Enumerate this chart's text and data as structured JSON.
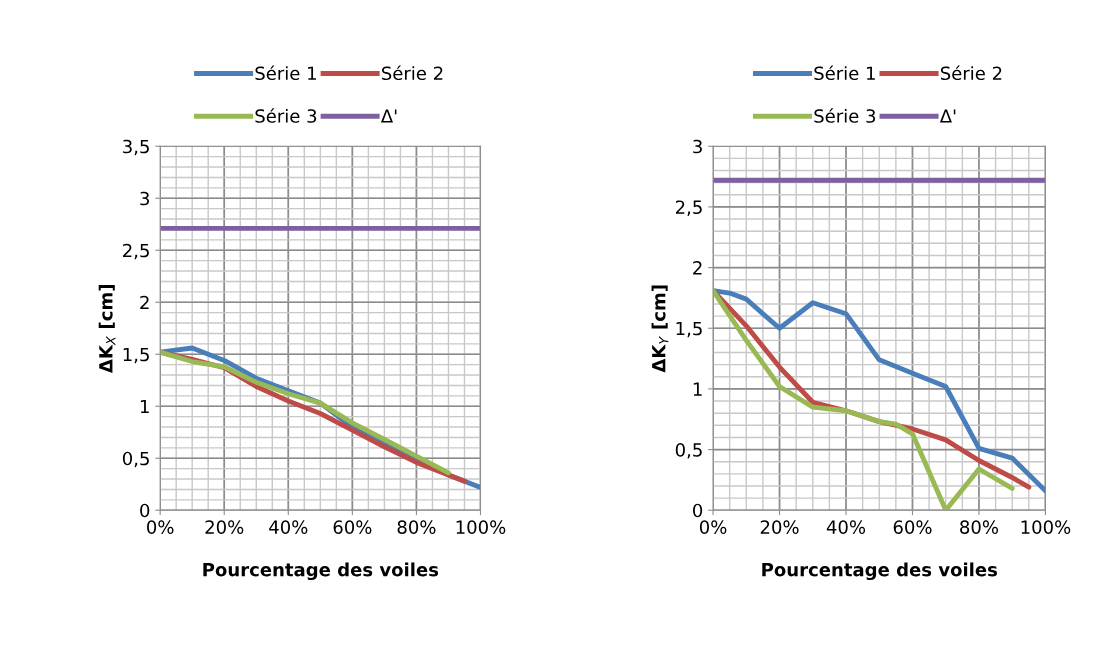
{
  "chart_data": [
    {
      "type": "line",
      "xlabel": "Pourcentage des voiles",
      "ylabel": "ΔK$_{X}$ [cm]",
      "legend": "top",
      "grid": true,
      "xlim": [
        0,
        1
      ],
      "xticks": [
        {
          "value": 0,
          "label": "0%"
        },
        {
          "value": 0.2,
          "label": "20%"
        },
        {
          "value": 0.4,
          "label": "40%"
        },
        {
          "value": 0.6,
          "label": "60%"
        },
        {
          "value": 0.8,
          "label": "80%"
        },
        {
          "value": 1,
          "label": "100%"
        }
      ],
      "ylim": [
        0,
        3.5
      ],
      "yticks": [
        0,
        {
          "value": 0.5,
          "label": "0,5"
        },
        1,
        {
          "value": 1.5,
          "label": "1,5"
        },
        2,
        {
          "value": 2.5,
          "label": "2,5"
        },
        3,
        {
          "value": 3.5,
          "label": "3,5"
        }
      ],
      "series": [
        {
          "name": "Série 1",
          "color": "#4a7ebb",
          "x": [
            0,
            0.1,
            0.2,
            0.3,
            0.4,
            0.5,
            0.6,
            0.7,
            0.8,
            0.9,
            1.0
          ],
          "values": [
            1.52,
            1.56,
            1.44,
            1.27,
            1.15,
            1.03,
            0.8,
            0.64,
            0.5,
            0.34,
            0.22
          ]
        },
        {
          "name": "Série 2",
          "color": "#be4b48",
          "x": [
            0,
            0.1,
            0.2,
            0.3,
            0.4,
            0.5,
            0.6,
            0.7,
            0.8,
            0.9,
            0.95
          ],
          "values": [
            1.52,
            1.45,
            1.37,
            1.19,
            1.05,
            0.93,
            0.77,
            0.61,
            0.46,
            0.34,
            0.28
          ]
        },
        {
          "name": "Série 3",
          "color": "#98b954",
          "x": [
            0,
            0.1,
            0.2,
            0.3,
            0.4,
            0.5,
            0.6,
            0.7,
            0.8,
            0.9
          ],
          "values": [
            1.52,
            1.43,
            1.38,
            1.23,
            1.12,
            1.03,
            0.84,
            0.68,
            0.52,
            0.36
          ]
        },
        {
          "name": "Δ'",
          "color": "#7d60a0",
          "x": [
            0,
            1
          ],
          "values": [
            2.71,
            2.71
          ]
        }
      ]
    },
    {
      "type": "line",
      "xlabel": "Pourcentage des voiles",
      "ylabel": "ΔK$_{Y}$ [cm]",
      "legend": "top",
      "grid": true,
      "xlim": [
        0,
        1
      ],
      "xticks": [
        {
          "value": 0,
          "label": "0%"
        },
        {
          "value": 0.2,
          "label": "20%"
        },
        {
          "value": 0.4,
          "label": "40%"
        },
        {
          "value": 0.6,
          "label": "60%"
        },
        {
          "value": 0.8,
          "label": "80%"
        },
        {
          "value": 1,
          "label": "100%"
        }
      ],
      "ylim": [
        0,
        3
      ],
      "yticks": [
        0,
        {
          "value": 0.5,
          "label": "0,5"
        },
        1,
        {
          "value": 1.5,
          "label": "1,5"
        },
        2,
        {
          "value": 2.5,
          "label": "2,5"
        },
        3
      ],
      "series": [
        {
          "name": "Série 1",
          "color": "#4a7ebb",
          "x": [
            0,
            0.05,
            0.1,
            0.2,
            0.3,
            0.4,
            0.5,
            0.6,
            0.7,
            0.8,
            0.9,
            1.0
          ],
          "values": [
            1.81,
            1.79,
            1.74,
            1.5,
            1.71,
            1.62,
            1.24,
            1.13,
            1.02,
            0.51,
            0.43,
            0.16
          ]
        },
        {
          "name": "Série 2",
          "color": "#be4b48",
          "x": [
            0,
            0.1,
            0.2,
            0.3,
            0.4,
            0.5,
            0.6,
            0.7,
            0.8,
            0.9,
            0.95
          ],
          "values": [
            1.81,
            1.52,
            1.18,
            0.89,
            0.82,
            0.73,
            0.67,
            0.58,
            0.41,
            0.27,
            0.19
          ]
        },
        {
          "name": "Série 3",
          "color": "#98b954",
          "x": [
            0,
            0.1,
            0.2,
            0.3,
            0.4,
            0.5,
            0.55,
            0.6,
            0.7,
            0.8,
            0.9
          ],
          "values": [
            1.81,
            1.4,
            1.02,
            0.85,
            0.82,
            0.73,
            0.71,
            0.63,
            0.0,
            0.34,
            0.18
          ]
        },
        {
          "name": "Δ'",
          "color": "#7d60a0",
          "x": [
            0,
            1
          ],
          "values": [
            2.72,
            2.72
          ]
        }
      ]
    }
  ]
}
